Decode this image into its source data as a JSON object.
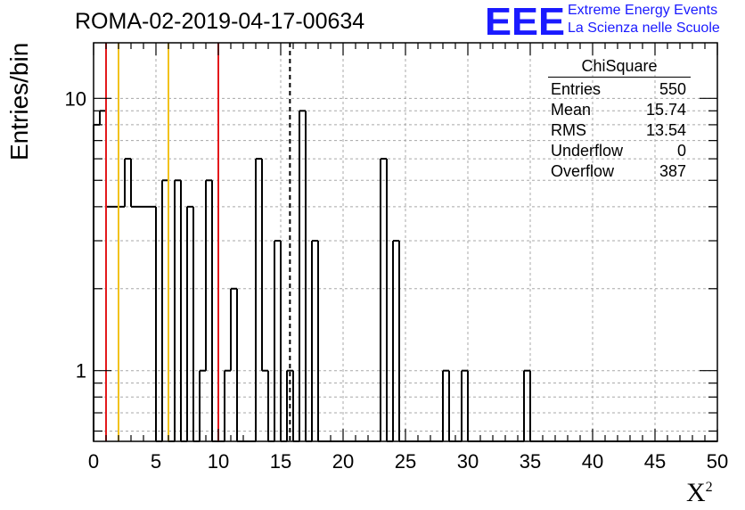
{
  "header": {
    "title": "ROMA-02-2019-04-17-00634",
    "logo_text": "EEE",
    "logo_line1": "Extreme Energy Events",
    "logo_line2": "La Scienza nelle Scuole"
  },
  "axes": {
    "ylabel": "Entries/bin",
    "xlabel_base": "X",
    "xlabel_sup": "2"
  },
  "stats": {
    "title": "ChiSquare",
    "rows": [
      {
        "label": "Entries",
        "value": "550"
      },
      {
        "label": "Mean",
        "value": "15.74"
      },
      {
        "label": "RMS",
        "value": "13.54"
      },
      {
        "label": "Underflow",
        "value": "0"
      },
      {
        "label": "Overflow",
        "value": "387"
      }
    ]
  },
  "chart_data": {
    "type": "histogram",
    "title": "ROMA-02-2019-04-17-00634",
    "xlabel": "X²",
    "ylabel": "Entries/bin",
    "xlim": [
      0,
      50
    ],
    "ylim": [
      0.55,
      16
    ],
    "y_scale": "log",
    "grid": true,
    "bin_width": 0.5,
    "x_ticks": [
      0,
      5,
      10,
      15,
      20,
      25,
      30,
      35,
      40,
      45,
      50
    ],
    "y_tick_labels": [
      {
        "value": 1,
        "label": "1"
      },
      {
        "value": 10,
        "label": "10"
      }
    ],
    "bin_values": [
      8,
      9,
      4,
      4,
      4,
      6,
      4,
      4,
      4,
      4,
      0,
      5,
      0,
      5,
      0,
      4,
      0,
      1,
      5,
      0,
      0,
      1,
      2,
      0,
      0,
      0,
      6,
      1,
      0,
      3,
      0,
      1,
      0,
      9,
      0,
      3,
      0,
      0,
      0,
      0,
      0,
      0,
      0,
      0,
      0,
      0,
      6,
      0,
      3,
      0,
      0,
      0,
      0,
      0,
      0,
      0,
      1,
      0,
      0,
      1,
      0,
      0,
      0,
      0,
      0,
      0,
      0,
      0,
      0,
      1,
      0,
      0,
      0,
      0,
      0,
      0,
      0,
      0,
      0,
      0,
      0,
      0,
      0,
      0,
      0,
      0,
      0,
      0,
      0,
      0,
      0,
      0,
      0,
      0,
      0,
      0,
      0,
      0,
      0,
      0
    ],
    "vertical_lines": [
      {
        "x": 1,
        "color": "#e3191c",
        "style": "solid"
      },
      {
        "x": 2,
        "color": "#f2c21b",
        "style": "solid"
      },
      {
        "x": 6,
        "color": "#f2c21b",
        "style": "solid"
      },
      {
        "x": 10,
        "color": "#e3191c",
        "style": "solid"
      },
      {
        "x": 15.74,
        "color": "#000000",
        "style": "dashed"
      }
    ]
  }
}
